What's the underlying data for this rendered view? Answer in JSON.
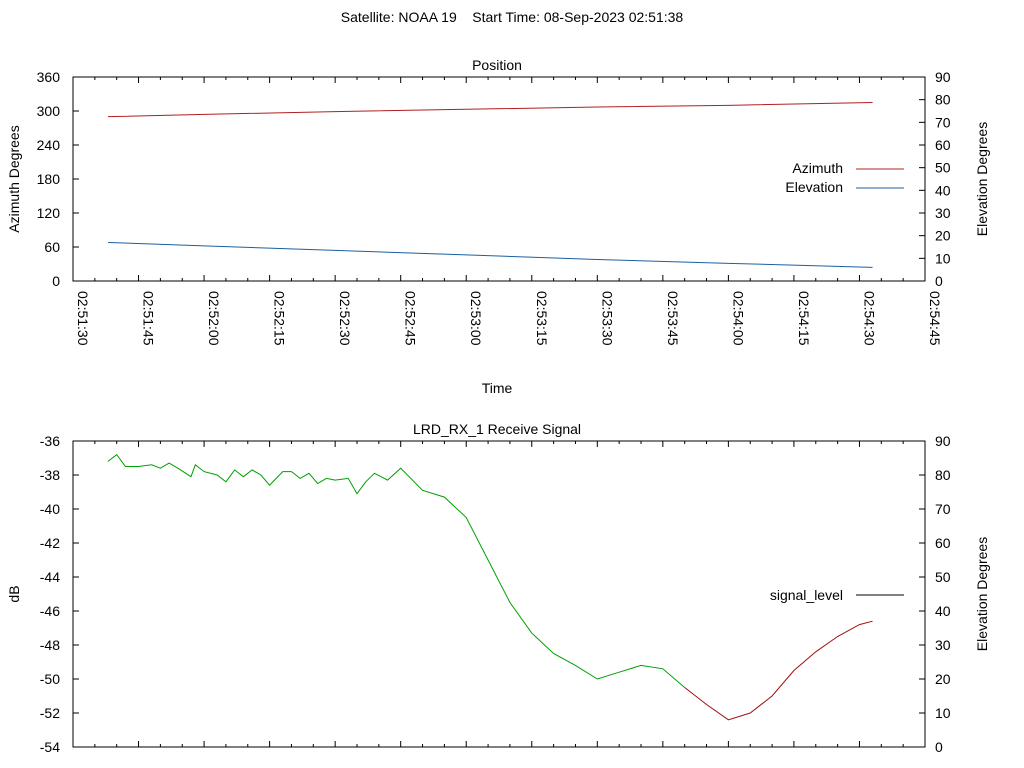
{
  "page_title": "Satellite: NOAA 19    Start Time: 08-Sep-2023 02:51:38",
  "chart_data": [
    {
      "type": "line",
      "title": "Position",
      "xlabel": "Time",
      "ylabel": "Azimuth Degrees",
      "y2label": "Elevation Degrees",
      "ylim": [
        0,
        360
      ],
      "y2lim": [
        0,
        90
      ],
      "yticks": [
        "0",
        "60",
        "120",
        "180",
        "240",
        "300",
        "360"
      ],
      "y2ticks": [
        "0",
        "10",
        "20",
        "30",
        "40",
        "50",
        "60",
        "70",
        "80",
        "90"
      ],
      "xticks": [
        "02:51:30",
        "02:51:45",
        "02:52:00",
        "02:52:15",
        "02:52:30",
        "02:52:45",
        "02:53:00",
        "02:53:15",
        "02:53:30",
        "02:53:45",
        "02:54:00",
        "02:54:15",
        "02:54:30",
        "02:54:45"
      ],
      "xlim": [
        "02:51:30",
        "02:54:45"
      ],
      "grid": false,
      "legend_position": "right",
      "series": [
        {
          "name": "Azimuth",
          "axis": "left",
          "color": "#b02020",
          "x": [
            "02:51:38",
            "02:52:00",
            "02:52:30",
            "02:53:00",
            "02:53:30",
            "02:54:00",
            "02:54:33"
          ],
          "y": [
            290,
            294,
            299,
            303,
            307,
            310,
            315
          ]
        },
        {
          "name": "Elevation",
          "axis": "right",
          "color": "#1f5fa0",
          "x": [
            "02:51:38",
            "02:52:00",
            "02:52:30",
            "02:53:00",
            "02:53:30",
            "02:54:00",
            "02:54:33"
          ],
          "y": [
            17,
            15.5,
            13.5,
            11.5,
            9.5,
            7.8,
            6
          ]
        }
      ]
    },
    {
      "type": "line",
      "title": "LRD_RX_1 Receive Signal",
      "xlabel": "",
      "ylabel": "dB",
      "y2label": "Elevation Degrees",
      "ylim": [
        -54,
        -36
      ],
      "y2lim": [
        0,
        90
      ],
      "yticks": [
        "-54",
        "-52",
        "-50",
        "-48",
        "-46",
        "-44",
        "-42",
        "-40",
        "-38",
        "-36"
      ],
      "y2ticks": [
        "0",
        "10",
        "20",
        "30",
        "40",
        "50",
        "60",
        "70",
        "80",
        "90"
      ],
      "xlim": [
        "02:51:30",
        "02:54:45"
      ],
      "grid": false,
      "legend_position": "right",
      "legend_color": "#000000",
      "color_high_elevation": "#00a000",
      "color_low_elevation": "#a01010",
      "series": [
        {
          "name": "signal_level",
          "x": [
            "02:51:38",
            "02:51:40",
            "02:51:42",
            "02:51:45",
            "02:51:48",
            "02:51:50",
            "02:51:52",
            "02:51:54",
            "02:51:57",
            "02:51:58",
            "02:52:00",
            "02:52:03",
            "02:52:05",
            "02:52:07",
            "02:52:09",
            "02:52:11",
            "02:52:13",
            "02:52:15",
            "02:52:18",
            "02:52:20",
            "02:52:22",
            "02:52:24",
            "02:52:26",
            "02:52:28",
            "02:52:30",
            "02:52:33",
            "02:52:35",
            "02:52:37",
            "02:52:39",
            "02:52:42",
            "02:52:45",
            "02:52:50",
            "02:52:55",
            "02:53:00",
            "02:53:05",
            "02:53:10",
            "02:53:15",
            "02:53:20",
            "02:53:25",
            "02:53:30",
            "02:53:35",
            "02:53:40",
            "02:53:45",
            "02:53:50",
            "02:53:55",
            "02:54:00",
            "02:54:05",
            "02:54:10",
            "02:54:15",
            "02:54:20",
            "02:54:25",
            "02:54:30",
            "02:54:33"
          ],
          "y": [
            -37.2,
            -36.8,
            -37.5,
            -37.5,
            -37.4,
            -37.6,
            -37.3,
            -37.6,
            -38.1,
            -37.4,
            -37.8,
            -38.0,
            -38.4,
            -37.7,
            -38.1,
            -37.7,
            -38.0,
            -38.6,
            -37.8,
            -37.8,
            -38.2,
            -37.9,
            -38.5,
            -38.2,
            -38.3,
            -38.2,
            -39.1,
            -38.4,
            -37.9,
            -38.3,
            -37.6,
            -38.9,
            -39.3,
            -40.5,
            -43.0,
            -45.5,
            -47.3,
            -48.5,
            -49.2,
            -50.0,
            -49.6,
            -49.2,
            -49.4,
            -50.5,
            -51.5,
            -52.4,
            -52.0,
            -51.0,
            -49.5,
            -48.4,
            -47.5,
            -46.8,
            -46.6
          ]
        }
      ]
    }
  ]
}
